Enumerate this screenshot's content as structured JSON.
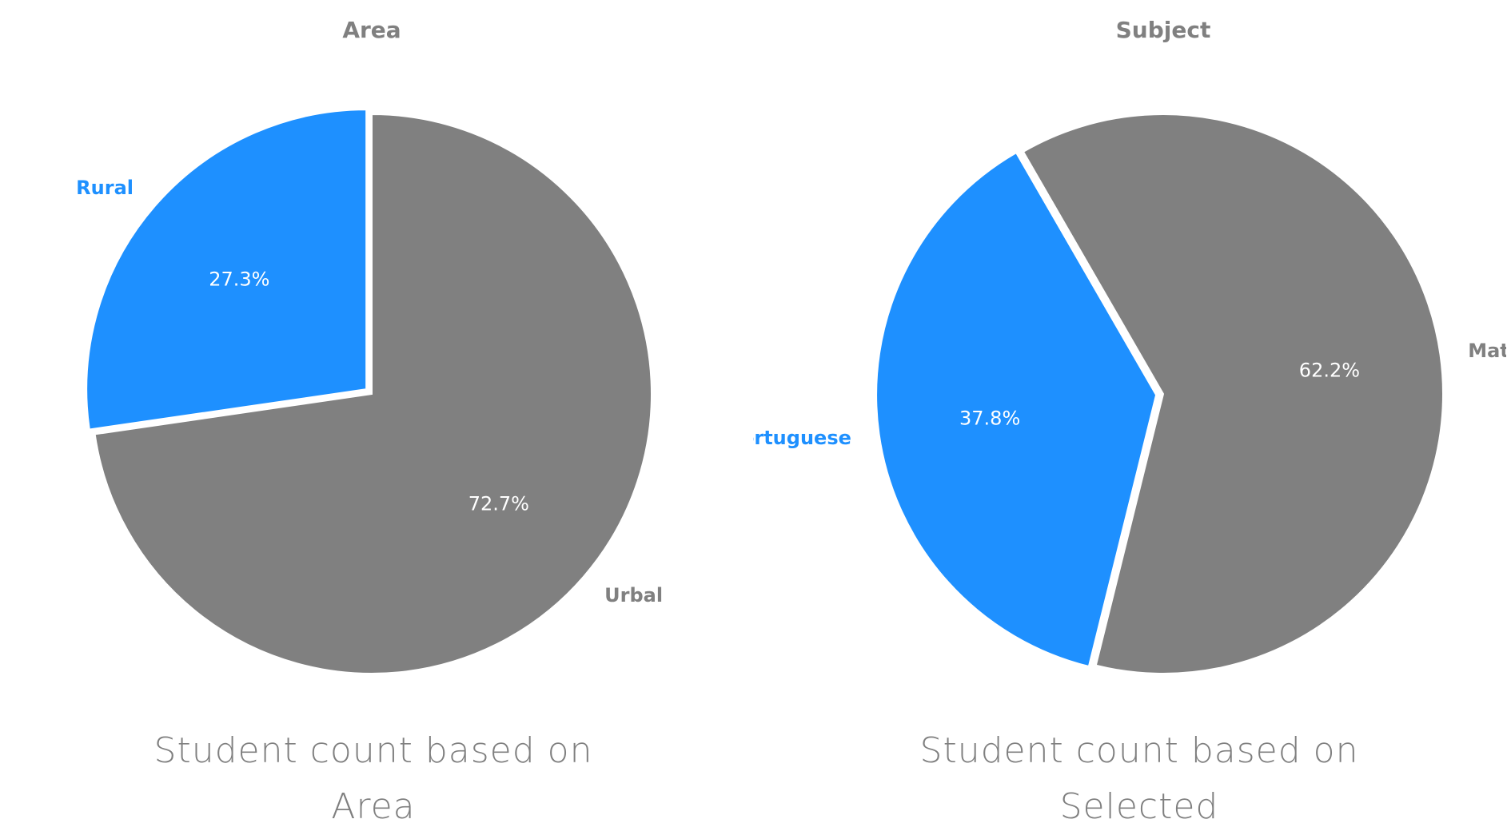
{
  "colors": {
    "accent": "#1e90ff",
    "neutral": "#808080",
    "text_muted": "#7f7f7f",
    "slice_label": "#ffffff"
  },
  "chart_data": [
    {
      "type": "pie",
      "title": "Area",
      "slices": [
        {
          "label": "Rural",
          "value": 27.3,
          "pct_label": "27.3%",
          "color": "#1e90ff",
          "exploded": true
        },
        {
          "label": "Urbal",
          "value": 72.7,
          "pct_label": "72.7%",
          "color": "#808080",
          "exploded": false
        }
      ],
      "caption_lines": [
        "Student count based on",
        "Area"
      ]
    },
    {
      "type": "pie",
      "title": "Subject",
      "slices": [
        {
          "label": "Portuguese",
          "value": 37.8,
          "pct_label": "37.8%",
          "color": "#1e90ff",
          "exploded": true
        },
        {
          "label": "Math",
          "value": 62.2,
          "pct_label": "62.2%",
          "color": "#808080",
          "exploded": false
        }
      ],
      "caption_lines": [
        "Student count based on",
        "Selected"
      ]
    }
  ]
}
